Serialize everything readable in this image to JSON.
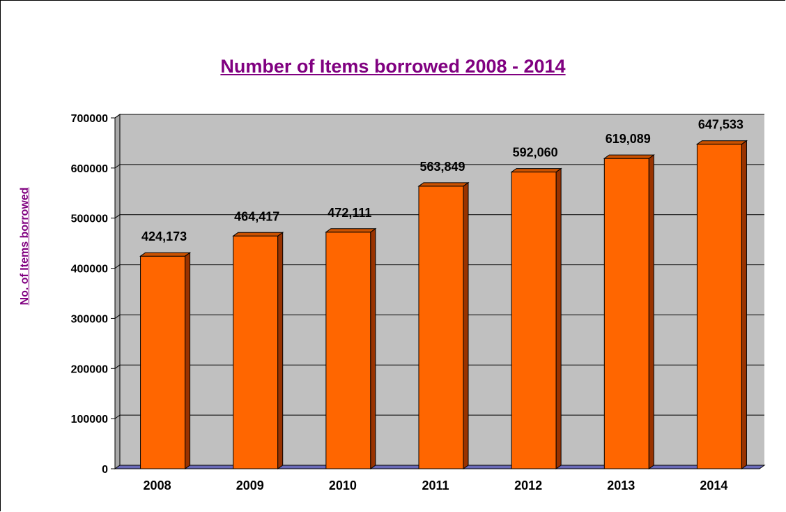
{
  "colors": {
    "title": "#800080",
    "ylabel": "#800080",
    "bar_front": "#ff6600",
    "bar_side": "#993300",
    "bar_top": "#cc5200",
    "plot_background": "#c0c0c0",
    "floor": "#6a6ab8",
    "gridline": "#000000",
    "text": "#000000"
  },
  "chart_data": {
    "type": "bar",
    "title": "Number of Items borrowed 2008 - 2014",
    "xlabel": "",
    "ylabel": "No. of Items borrowed",
    "categories": [
      "2008",
      "2009",
      "2010",
      "2011",
      "2012",
      "2013",
      "2014"
    ],
    "values": [
      424173,
      464417,
      472111,
      563849,
      592060,
      619089,
      647533
    ],
    "data_labels": [
      "424,173",
      "464,417",
      "472,111",
      "563,849",
      "592,060",
      "619,089",
      "647,533"
    ],
    "yticks": [
      "0",
      "100000",
      "200000",
      "300000",
      "400000",
      "500000",
      "600000",
      "700000"
    ],
    "ylim": [
      0,
      700000
    ],
    "grid": true,
    "legend": "none",
    "style": "3d-column"
  }
}
